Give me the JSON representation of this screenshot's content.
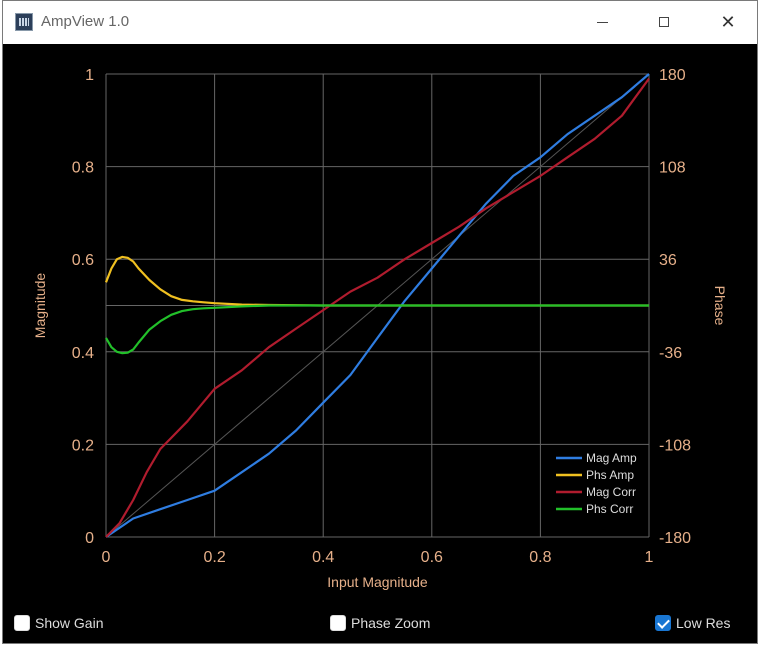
{
  "window": {
    "title": "AmpView 1.0"
  },
  "controls": {
    "show_gain": {
      "label": "Show Gain",
      "checked": false
    },
    "phase_zoom": {
      "label": "Phase Zoom",
      "checked": false
    },
    "low_res": {
      "label": "Low Res",
      "checked": true
    }
  },
  "colors": {
    "background": "#000000",
    "grid": "#666666",
    "tick_text": "#e6b08a",
    "mag_amp": "#2f7de1",
    "phs_amp": "#f0c020",
    "mag_corr": "#b01c2e",
    "phs_corr": "#22c02a",
    "identity": "#555555"
  },
  "chart_data": {
    "type": "line",
    "xlabel": "Input Magnitude",
    "ylabel": "Magnitude",
    "y2label": "Phase",
    "xlim": [
      0,
      1
    ],
    "ylim": [
      0,
      1
    ],
    "y2lim": [
      -180,
      180
    ],
    "xticks": [
      "0",
      "0.2",
      "0.4",
      "0.6",
      "0.8",
      "1"
    ],
    "yticks": [
      "0",
      "0.2",
      "0.4",
      "0.6",
      "0.8",
      "1"
    ],
    "y2ticks": [
      "-180",
      "-108",
      "-36",
      "36",
      "108",
      "180"
    ],
    "grid": true,
    "legend_position": "bottom-right",
    "series": [
      {
        "name": "Mag Amp",
        "axis": "left",
        "x": [
          0,
          0.05,
          0.1,
          0.15,
          0.2,
          0.25,
          0.3,
          0.35,
          0.4,
          0.45,
          0.5,
          0.55,
          0.6,
          0.65,
          0.7,
          0.75,
          0.8,
          0.85,
          0.9,
          0.95,
          1
        ],
        "y": [
          0,
          0.04,
          0.06,
          0.08,
          0.1,
          0.14,
          0.18,
          0.23,
          0.29,
          0.35,
          0.43,
          0.51,
          0.58,
          0.65,
          0.72,
          0.78,
          0.82,
          0.87,
          0.91,
          0.95,
          1
        ]
      },
      {
        "name": "Phs Amp",
        "axis": "left",
        "x": [
          0,
          0.01,
          0.02,
          0.03,
          0.04,
          0.05,
          0.06,
          0.08,
          0.1,
          0.12,
          0.14,
          0.16,
          0.18,
          0.2,
          0.25,
          0.3,
          0.4,
          0.5,
          0.6,
          0.8,
          1
        ],
        "y": [
          0.55,
          0.58,
          0.6,
          0.605,
          0.603,
          0.595,
          0.58,
          0.555,
          0.535,
          0.52,
          0.512,
          0.509,
          0.507,
          0.505,
          0.502,
          0.501,
          0.5,
          0.5,
          0.5,
          0.5,
          0.5
        ]
      },
      {
        "name": "Mag Corr",
        "axis": "left",
        "x": [
          0,
          0.025,
          0.05,
          0.075,
          0.1,
          0.125,
          0.15,
          0.2,
          0.25,
          0.3,
          0.35,
          0.4,
          0.45,
          0.5,
          0.55,
          0.6,
          0.65,
          0.7,
          0.75,
          0.8,
          0.85,
          0.9,
          0.95,
          1
        ],
        "y": [
          0,
          0.03,
          0.08,
          0.14,
          0.19,
          0.22,
          0.25,
          0.32,
          0.36,
          0.41,
          0.45,
          0.49,
          0.53,
          0.56,
          0.6,
          0.635,
          0.67,
          0.71,
          0.745,
          0.78,
          0.82,
          0.86,
          0.91,
          0.99
        ]
      },
      {
        "name": "Phs Corr",
        "axis": "left",
        "x": [
          0,
          0.01,
          0.02,
          0.03,
          0.04,
          0.05,
          0.06,
          0.08,
          0.1,
          0.12,
          0.14,
          0.16,
          0.18,
          0.2,
          0.25,
          0.3,
          0.4,
          0.5,
          0.6,
          0.8,
          1
        ],
        "y": [
          0.43,
          0.41,
          0.4,
          0.397,
          0.398,
          0.405,
          0.42,
          0.448,
          0.466,
          0.48,
          0.488,
          0.492,
          0.494,
          0.495,
          0.498,
          0.5,
          0.5,
          0.5,
          0.5,
          0.5,
          0.5
        ]
      }
    ]
  }
}
